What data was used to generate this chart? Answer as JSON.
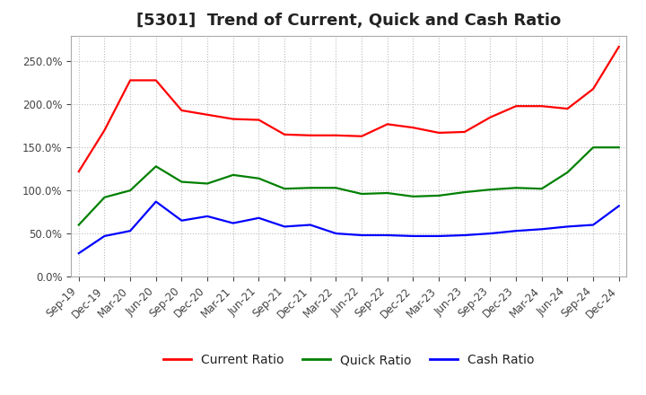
{
  "title": "[5301]  Trend of Current, Quick and Cash Ratio",
  "x_labels": [
    "Sep-19",
    "Dec-19",
    "Mar-20",
    "Jun-20",
    "Sep-20",
    "Dec-20",
    "Mar-21",
    "Jun-21",
    "Sep-21",
    "Dec-21",
    "Mar-22",
    "Jun-22",
    "Sep-22",
    "Dec-22",
    "Mar-23",
    "Jun-23",
    "Sep-23",
    "Dec-23",
    "Mar-24",
    "Jun-24",
    "Sep-24",
    "Dec-24"
  ],
  "current_ratio": [
    1.22,
    1.7,
    2.28,
    2.28,
    1.93,
    1.88,
    1.83,
    1.82,
    1.65,
    1.64,
    1.64,
    1.63,
    1.77,
    1.73,
    1.67,
    1.68,
    1.85,
    1.98,
    1.98,
    1.95,
    2.18,
    2.67
  ],
  "quick_ratio": [
    0.6,
    0.92,
    1.0,
    1.28,
    1.1,
    1.08,
    1.18,
    1.14,
    1.02,
    1.03,
    1.03,
    0.96,
    0.97,
    0.93,
    0.94,
    0.98,
    1.01,
    1.03,
    1.02,
    1.21,
    1.5,
    1.5
  ],
  "cash_ratio": [
    0.27,
    0.47,
    0.53,
    0.87,
    0.65,
    0.7,
    0.62,
    0.68,
    0.58,
    0.6,
    0.5,
    0.48,
    0.48,
    0.47,
    0.47,
    0.48,
    0.5,
    0.53,
    0.55,
    0.58,
    0.6,
    0.82
  ],
  "line_colors": {
    "current": "#ff0000",
    "quick": "#008000",
    "cash": "#0000ff"
  },
  "ylim": [
    0.0,
    2.8
  ],
  "yticks": [
    0.0,
    0.5,
    1.0,
    1.5,
    2.0,
    2.5
  ],
  "background_color": "#ffffff",
  "plot_bg_color": "#ffffff",
  "grid_color": "#aaaaaa",
  "legend_labels": [
    "Current Ratio",
    "Quick Ratio",
    "Cash Ratio"
  ],
  "title_fontsize": 13,
  "tick_fontsize": 8.5,
  "legend_fontsize": 10,
  "line_width": 1.6
}
